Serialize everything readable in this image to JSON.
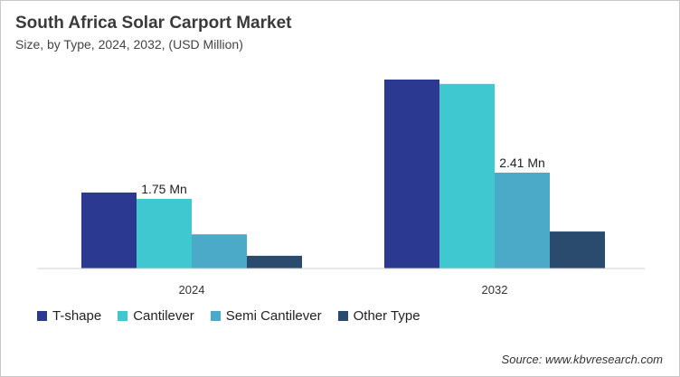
{
  "chart_data": {
    "type": "bar",
    "title": "South Africa Solar Carport Market",
    "subtitle": "Size, by Type, 2024, 2032, (USD Million)",
    "categories": [
      "2024",
      "2032"
    ],
    "series": [
      {
        "name": "T-shape",
        "color": "#2b3990",
        "values": [
          1.91,
          4.75
        ]
      },
      {
        "name": "Cantilever",
        "color": "#40c8d0",
        "values": [
          1.75,
          4.64
        ]
      },
      {
        "name": "Semi Cantilever",
        "color": "#4aaac8",
        "values": [
          0.86,
          2.41
        ]
      },
      {
        "name": "Other Type",
        "color": "#2a4a6e",
        "values": [
          0.32,
          0.93
        ]
      }
    ],
    "data_labels": [
      {
        "series": 1,
        "category": 0,
        "text": "1.75 Mn"
      },
      {
        "series": 2,
        "category": 1,
        "text": "2.41 Mn"
      }
    ],
    "ylim": [
      0,
      5.5
    ],
    "grid": false,
    "legend": "bottom-left"
  },
  "source": "Source: www.kbvresearch.com"
}
